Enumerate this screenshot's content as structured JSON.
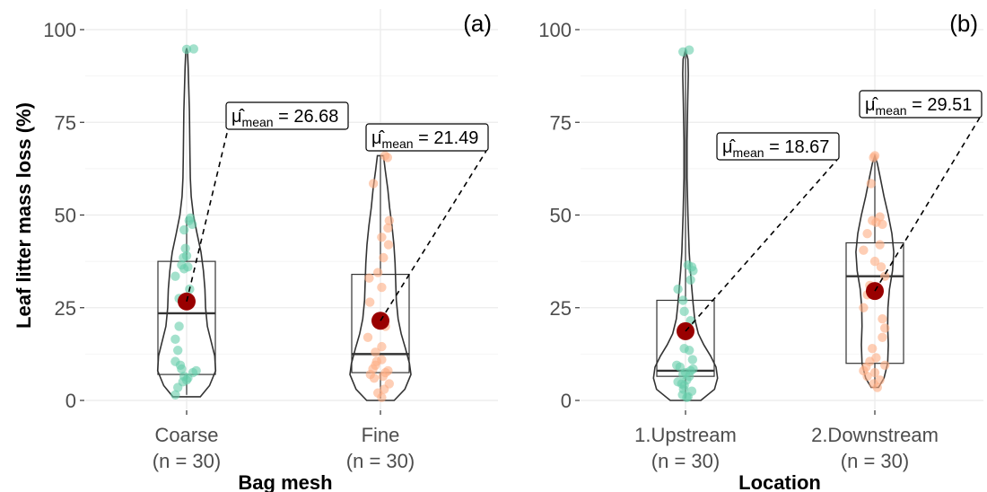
{
  "chart_data": [
    {
      "type": "violin-box",
      "panel_tag": "(a)",
      "xlabel": "Bag mesh",
      "ylabel": "Leaf litter mass loss (%)",
      "ylim": [
        0,
        100
      ],
      "yticks": [
        0,
        25,
        50,
        75,
        100
      ],
      "grid": true,
      "groups": [
        {
          "name": "Coarse",
          "n_label": "(n = 30)",
          "color": "#66CDAA",
          "mean": 26.68,
          "mean_label": "26.68",
          "box": {
            "q1": 7.0,
            "median": 23.5,
            "q3": 37.5,
            "whisker_low": 1.5,
            "whisker_high": 49.5
          },
          "violin": [
            [
              1,
              0.45
            ],
            [
              4,
              0.75
            ],
            [
              8,
              0.95
            ],
            [
              12,
              0.92
            ],
            [
              16,
              0.8
            ],
            [
              20,
              0.68
            ],
            [
              25,
              0.62
            ],
            [
              30,
              0.6
            ],
            [
              35,
              0.55
            ],
            [
              40,
              0.47
            ],
            [
              45,
              0.34
            ],
            [
              50,
              0.22
            ],
            [
              55,
              0.15
            ],
            [
              60,
              0.12
            ],
            [
              66,
              0.11
            ],
            [
              72,
              0.1
            ],
            [
              78,
              0.09
            ],
            [
              84,
              0.07
            ],
            [
              90,
              0.05
            ],
            [
              94,
              0.03
            ],
            [
              95,
              0.0
            ]
          ],
          "points": [
            [
              94.8,
              0.28
            ],
            [
              94.7,
              0.0
            ],
            [
              49.2,
              0.15
            ],
            [
              48.5,
              0.1
            ],
            [
              47.5,
              0.22
            ],
            [
              46.0,
              -0.1
            ],
            [
              41.0,
              -0.05
            ],
            [
              39.0,
              0.0
            ],
            [
              38.5,
              -0.13
            ],
            [
              36.5,
              -0.2
            ],
            [
              36.0,
              0.05
            ],
            [
              35.5,
              -0.1
            ],
            [
              33.5,
              -0.45
            ],
            [
              30.0,
              0.12
            ],
            [
              27.5,
              -0.3
            ],
            [
              26.0,
              0.05
            ],
            [
              20.0,
              -0.3
            ],
            [
              16.5,
              -0.45
            ],
            [
              13.5,
              -0.35
            ],
            [
              10.5,
              -0.45
            ],
            [
              9.5,
              -0.25
            ],
            [
              8.5,
              -0.2
            ],
            [
              8.0,
              0.38
            ],
            [
              7.5,
              0.25
            ],
            [
              6.5,
              -0.1
            ],
            [
              6.0,
              0.05
            ],
            [
              5.5,
              0.0
            ],
            [
              5.0,
              -0.15
            ],
            [
              3.5,
              -0.35
            ],
            [
              1.5,
              -0.45
            ]
          ]
        },
        {
          "name": "Fine",
          "n_label": "(n = 30)",
          "color": "#FDAE83",
          "mean": 21.49,
          "mean_label": "21.49",
          "box": {
            "q1": 7.5,
            "median": 12.5,
            "q3": 34.0,
            "whisker_low": 0.5,
            "whisker_high": 66.0
          },
          "violin": [
            [
              0,
              0.45
            ],
            [
              3,
              0.8
            ],
            [
              7,
              1.0
            ],
            [
              10,
              0.95
            ],
            [
              14,
              0.82
            ],
            [
              18,
              0.68
            ],
            [
              22,
              0.58
            ],
            [
              27,
              0.52
            ],
            [
              32,
              0.5
            ],
            [
              37,
              0.48
            ],
            [
              42,
              0.44
            ],
            [
              47,
              0.38
            ],
            [
              52,
              0.3
            ],
            [
              57,
              0.24
            ],
            [
              62,
              0.16
            ],
            [
              66,
              0.1
            ]
          ],
          "points": [
            [
              66.0,
              0.18
            ],
            [
              65.5,
              0.28
            ],
            [
              58.5,
              -0.28
            ],
            [
              48.5,
              0.35
            ],
            [
              46.5,
              0.3
            ],
            [
              44.0,
              0.05
            ],
            [
              42.0,
              0.32
            ],
            [
              38.5,
              0.12
            ],
            [
              34.5,
              -0.1
            ],
            [
              33.0,
              -0.45
            ],
            [
              30.5,
              0.05
            ],
            [
              26.5,
              -0.42
            ],
            [
              22.5,
              0.0
            ],
            [
              20.0,
              0.2
            ],
            [
              17.0,
              -0.5
            ],
            [
              14.5,
              0.05
            ],
            [
              13.0,
              -0.2
            ],
            [
              11.0,
              0.05
            ],
            [
              10.5,
              -0.15
            ],
            [
              9.5,
              -0.2
            ],
            [
              8.5,
              -0.3
            ],
            [
              8.0,
              0.3
            ],
            [
              7.5,
              0.2
            ],
            [
              7.0,
              -0.4
            ],
            [
              6.5,
              0.1
            ],
            [
              6.0,
              -0.25
            ],
            [
              4.5,
              0.35
            ],
            [
              3.0,
              0.15
            ],
            [
              2.0,
              -0.1
            ],
            [
              0.8,
              0.05
            ]
          ]
        }
      ]
    },
    {
      "type": "violin-box",
      "panel_tag": "(b)",
      "xlabel": "Location",
      "ylabel": "",
      "ylim": [
        0,
        100
      ],
      "yticks": [
        0,
        25,
        50,
        75,
        100
      ],
      "grid": true,
      "groups": [
        {
          "name": "1.Upstream",
          "n_label": "(n = 30)",
          "color": "#66CDAA",
          "mean": 18.67,
          "mean_label": "18.67",
          "box": {
            "q1": 6.5,
            "median": 8.0,
            "q3": 27.0,
            "whisker_low": 0.5,
            "whisker_high": 94.5
          },
          "violin": [
            [
              0,
              0.5
            ],
            [
              3,
              0.95
            ],
            [
              6,
              1.05
            ],
            [
              9,
              1.0
            ],
            [
              12,
              0.82
            ],
            [
              15,
              0.6
            ],
            [
              18,
              0.42
            ],
            [
              22,
              0.3
            ],
            [
              26,
              0.25
            ],
            [
              30,
              0.21
            ],
            [
              35,
              0.16
            ],
            [
              40,
              0.12
            ],
            [
              50,
              0.08
            ],
            [
              60,
              0.05
            ],
            [
              70,
              0.05
            ],
            [
              80,
              0.07
            ],
            [
              88,
              0.09
            ],
            [
              92,
              0.08
            ],
            [
              94.5,
              0.0
            ]
          ],
          "points": [
            [
              94.5,
              0.15
            ],
            [
              94.0,
              -0.1
            ],
            [
              36.5,
              0.1
            ],
            [
              36.0,
              0.25
            ],
            [
              35.0,
              0.3
            ],
            [
              32.5,
              0.2
            ],
            [
              30.0,
              -0.3
            ],
            [
              27.0,
              -0.1
            ],
            [
              24.0,
              -0.05
            ],
            [
              21.5,
              0.2
            ],
            [
              17.5,
              0.05
            ],
            [
              14.0,
              -0.05
            ],
            [
              13.5,
              0.15
            ],
            [
              11.0,
              0.28
            ],
            [
              9.5,
              -0.35
            ],
            [
              9.0,
              -0.22
            ],
            [
              8.5,
              0.3
            ],
            [
              8.0,
              0.2
            ],
            [
              7.5,
              0.0
            ],
            [
              7.0,
              -0.1
            ],
            [
              6.5,
              0.15
            ],
            [
              5.5,
              0.05
            ],
            [
              4.5,
              -0.15
            ],
            [
              4.0,
              -0.05
            ],
            [
              3.0,
              -0.08
            ],
            [
              1.5,
              -0.12
            ],
            [
              1.0,
              0.1
            ],
            [
              0.8,
              0.05
            ],
            [
              2.5,
              0.25
            ],
            [
              5.0,
              -0.3
            ]
          ]
        },
        {
          "name": "2.Downstream",
          "n_label": "(n = 30)",
          "color": "#FDAE83",
          "mean": 29.51,
          "mean_label": "29.51",
          "box": {
            "q1": 10.0,
            "median": 33.5,
            "q3": 42.5,
            "whisker_low": 3.5,
            "whisker_high": 66.0
          },
          "violin": [
            [
              3.5,
              0.12
            ],
            [
              6,
              0.3
            ],
            [
              10,
              0.42
            ],
            [
              15,
              0.44
            ],
            [
              20,
              0.42
            ],
            [
              25,
              0.43
            ],
            [
              30,
              0.48
            ],
            [
              35,
              0.58
            ],
            [
              40,
              0.62
            ],
            [
              45,
              0.56
            ],
            [
              50,
              0.44
            ],
            [
              55,
              0.3
            ],
            [
              60,
              0.18
            ],
            [
              64,
              0.08
            ],
            [
              66,
              0.0
            ]
          ],
          "points": [
            [
              66.0,
              0.0
            ],
            [
              65.5,
              -0.05
            ],
            [
              58.5,
              -0.15
            ],
            [
              49.5,
              0.2
            ],
            [
              48.5,
              -0.1
            ],
            [
              48.0,
              0.05
            ],
            [
              47.5,
              0.3
            ],
            [
              45.0,
              -0.3
            ],
            [
              42.0,
              0.2
            ],
            [
              40.5,
              -0.45
            ],
            [
              37.5,
              0.0
            ],
            [
              36.0,
              0.25
            ],
            [
              33.5,
              0.4
            ],
            [
              31.0,
              -0.2
            ],
            [
              28.5,
              -0.3
            ],
            [
              25.0,
              -0.45
            ],
            [
              22.0,
              0.3
            ],
            [
              19.5,
              0.4
            ],
            [
              17.0,
              0.3
            ],
            [
              14.0,
              -0.1
            ],
            [
              11.5,
              0.05
            ],
            [
              10.5,
              -0.2
            ],
            [
              9.5,
              0.4
            ],
            [
              9.0,
              -0.35
            ],
            [
              8.0,
              -0.45
            ],
            [
              7.5,
              0.0
            ],
            [
              6.5,
              -0.3
            ],
            [
              5.5,
              0.2
            ],
            [
              4.5,
              -0.05
            ],
            [
              3.5,
              0.1
            ]
          ]
        }
      ]
    }
  ],
  "annotation": {
    "symbol": "μ̂",
    "subscript": "mean",
    "equals": " = "
  },
  "mean_marker_color": "#990000"
}
